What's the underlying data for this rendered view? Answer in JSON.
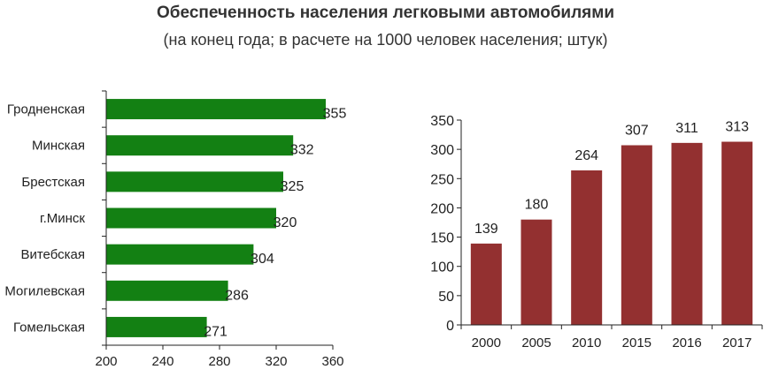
{
  "header": {
    "title": "Обеспеченность населения легковыми автомобилями",
    "subtitle": "(на конец года; в расчете на 1000 человек населения; штук)"
  },
  "chart_data": [
    {
      "type": "bar",
      "orientation": "horizontal",
      "categories": [
        "Гродненская",
        "Минская",
        "Брестская",
        "г.Минск",
        "Витебская",
        "Могилевская",
        "Гомельская"
      ],
      "values": [
        355,
        332,
        325,
        320,
        304,
        286,
        271
      ],
      "xlim": [
        200,
        360
      ],
      "xticks": [
        200,
        240,
        280,
        320,
        360
      ],
      "bar_color": "#138013",
      "grid": false
    },
    {
      "type": "bar",
      "orientation": "vertical",
      "categories": [
        "2000",
        "2005",
        "2010",
        "2015",
        "2016",
        "2017"
      ],
      "values": [
        139,
        180,
        264,
        307,
        311,
        313
      ],
      "ylim": [
        0,
        350
      ],
      "yticks": [
        0,
        50,
        100,
        150,
        200,
        250,
        300,
        350
      ],
      "bar_color": "#933030",
      "grid": false
    }
  ]
}
